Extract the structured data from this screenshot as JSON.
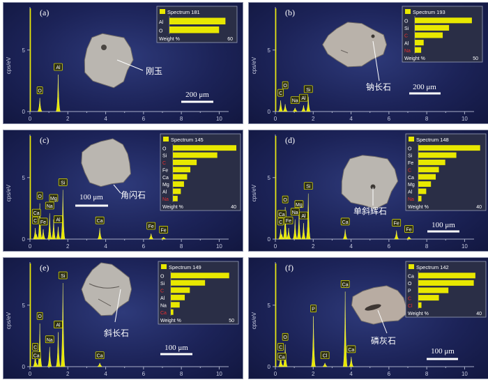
{
  "chart_data": [
    {
      "type": "bar",
      "panel_label": "(a)",
      "ylabel": "cps/eV",
      "x_ticks": [
        "0",
        "2",
        "4",
        "6",
        "8",
        "10"
      ],
      "y_ticks": [
        "0",
        "5"
      ],
      "xlim": [
        0,
        10.5
      ],
      "ylim": [
        0,
        8.5
      ],
      "peaks": [
        {
          "element": "O",
          "x": 0.52,
          "y": 1.1
        },
        {
          "element": "Al",
          "x": 1.49,
          "y": 3.0
        }
      ],
      "mineral": "刚玉",
      "scale_bar": "200 μm",
      "inset": {
        "title": "Spectrum 181",
        "footer_label": "Weight %",
        "axis_max": "60",
        "scale_max": 60,
        "items": [
          {
            "element": "Al",
            "value": 53,
            "color": "#e8e800"
          },
          {
            "element": "O",
            "value": 47,
            "color": "#e8e800"
          }
        ]
      }
    },
    {
      "type": "bar",
      "panel_label": "(b)",
      "ylabel": "cps/eV",
      "x_ticks": [
        "0",
        "2",
        "4",
        "6",
        "8",
        "10"
      ],
      "y_ticks": [
        "0",
        "5"
      ],
      "xlim": [
        0,
        10.5
      ],
      "ylim": [
        0,
        8.5
      ],
      "peaks": [
        {
          "element": "C",
          "x": 0.28,
          "y": 0.9
        },
        {
          "element": "O",
          "x": 0.52,
          "y": 0.6
        },
        {
          "element": "Na",
          "x": 1.04,
          "y": 0.3
        },
        {
          "element": "Al",
          "x": 1.49,
          "y": 0.5
        },
        {
          "element": "Si",
          "x": 1.74,
          "y": 1.2
        }
      ],
      "mineral": "钠长石",
      "scale_bar": "200 μm",
      "inset": {
        "title": "Spectrum 193",
        "footer_label": "Weight %",
        "axis_max": "50",
        "scale_max": 50,
        "items": [
          {
            "element": "O",
            "value": 45,
            "color": "#e8e800"
          },
          {
            "element": "Si",
            "value": 27,
            "color": "#e8e800"
          },
          {
            "element": "C",
            "value": 22,
            "color": "#e83030"
          },
          {
            "element": "Al",
            "value": 7,
            "color": "#e8e800"
          },
          {
            "element": "Na",
            "value": 5,
            "color": "#e83030"
          }
        ]
      }
    },
    {
      "type": "bar",
      "panel_label": "(c)",
      "ylabel": "cps/eV",
      "x_ticks": [
        "0",
        "2",
        "4",
        "6",
        "8",
        "10"
      ],
      "y_ticks": [
        "0",
        "5"
      ],
      "xlim": [
        0,
        10.5
      ],
      "ylim": [
        0,
        8.5
      ],
      "peaks": [
        {
          "element": "C",
          "x": 0.28,
          "y": 0.9
        },
        {
          "element": "Ca",
          "x": 0.34,
          "y": 0.4
        },
        {
          "element": "O",
          "x": 0.52,
          "y": 2.9
        },
        {
          "element": "Fe",
          "x": 0.7,
          "y": 0.8
        },
        {
          "element": "Na",
          "x": 1.04,
          "y": 2.1
        },
        {
          "element": "Mg",
          "x": 1.25,
          "y": 1.6
        },
        {
          "element": "Al",
          "x": 1.49,
          "y": 1.0
        },
        {
          "element": "Si",
          "x": 1.74,
          "y": 4.0
        },
        {
          "element": "Ca",
          "x": 3.69,
          "y": 0.9
        },
        {
          "element": "Fe",
          "x": 6.4,
          "y": 0.45
        },
        {
          "element": "Fe",
          "x": 7.06,
          "y": 0.15
        }
      ],
      "mineral": "角闪石",
      "scale_bar": "100 μm",
      "inset": {
        "title": "Spectrum 145",
        "footer_label": "Weight %",
        "axis_max": "40",
        "scale_max": 40,
        "items": [
          {
            "element": "O",
            "value": 40,
            "color": "#e8e800"
          },
          {
            "element": "Si",
            "value": 28,
            "color": "#e8e800"
          },
          {
            "element": "C",
            "value": 15,
            "color": "#e83030"
          },
          {
            "element": "Fe",
            "value": 11,
            "color": "#e8e800"
          },
          {
            "element": "Ca",
            "value": 9,
            "color": "#e8e800"
          },
          {
            "element": "Mg",
            "value": 7,
            "color": "#e8e800"
          },
          {
            "element": "Al",
            "value": 5,
            "color": "#e8e800"
          },
          {
            "element": "Na",
            "value": 3,
            "color": "#e83030"
          }
        ]
      }
    },
    {
      "type": "bar",
      "panel_label": "(d)",
      "ylabel": "cps/eV",
      "x_ticks": [
        "0",
        "2",
        "4",
        "6",
        "8",
        "10"
      ],
      "y_ticks": [
        "0",
        "5"
      ],
      "xlim": [
        0,
        10.5
      ],
      "ylim": [
        0,
        8.5
      ],
      "peaks": [
        {
          "element": "C",
          "x": 0.28,
          "y": 0.8
        },
        {
          "element": "Ca",
          "x": 0.34,
          "y": 0.4
        },
        {
          "element": "O",
          "x": 0.52,
          "y": 2.6
        },
        {
          "element": "Fe",
          "x": 0.7,
          "y": 0.9
        },
        {
          "element": "Na",
          "x": 1.04,
          "y": 1.6
        },
        {
          "element": "Mg",
          "x": 1.25,
          "y": 2.1
        },
        {
          "element": "Al",
          "x": 1.49,
          "y": 1.3
        },
        {
          "element": "Si",
          "x": 1.74,
          "y": 3.7
        },
        {
          "element": "Ca",
          "x": 3.69,
          "y": 0.8
        },
        {
          "element": "Fe",
          "x": 6.4,
          "y": 0.7
        },
        {
          "element": "Fe",
          "x": 7.06,
          "y": 0.2
        }
      ],
      "mineral": "单斜辉石",
      "scale_bar": "100 μm",
      "inset": {
        "title": "Spectrum 148",
        "footer_label": "Weight %",
        "axis_max": "40",
        "scale_max": 40,
        "items": [
          {
            "element": "O",
            "value": 39,
            "color": "#e8e800"
          },
          {
            "element": "Si",
            "value": 24,
            "color": "#e8e800"
          },
          {
            "element": "Fe",
            "value": 17,
            "color": "#e8e800"
          },
          {
            "element": "C",
            "value": 13,
            "color": "#e83030"
          },
          {
            "element": "Ca",
            "value": 11,
            "color": "#e8e800"
          },
          {
            "element": "Mg",
            "value": 8,
            "color": "#e8e800"
          },
          {
            "element": "Al",
            "value": 5,
            "color": "#e8e800"
          },
          {
            "element": "Na",
            "value": 2,
            "color": "#e83030"
          }
        ]
      }
    },
    {
      "type": "bar",
      "panel_label": "(e)",
      "ylabel": "cps/eV",
      "x_ticks": [
        "0",
        "2",
        "4",
        "6",
        "8",
        "10"
      ],
      "y_ticks": [
        "0",
        "5"
      ],
      "xlim": [
        0,
        10.5
      ],
      "ylim": [
        0,
        8.5
      ],
      "peaks": [
        {
          "element": "C",
          "x": 0.28,
          "y": 1.0
        },
        {
          "element": "Ca",
          "x": 0.34,
          "y": 0.3
        },
        {
          "element": "O",
          "x": 0.52,
          "y": 3.5
        },
        {
          "element": "Na",
          "x": 1.04,
          "y": 1.6
        },
        {
          "element": "Al",
          "x": 1.49,
          "y": 2.8
        },
        {
          "element": "Si",
          "x": 1.74,
          "y": 6.8
        },
        {
          "element": "Ca",
          "x": 3.69,
          "y": 0.3
        }
      ],
      "mineral": "斜长石",
      "scale_bar": "100 μm",
      "inset": {
        "title": "Spectrum 149",
        "footer_label": "Weight %",
        "axis_max": "50",
        "scale_max": 50,
        "items": [
          {
            "element": "O",
            "value": 46,
            "color": "#e8e800"
          },
          {
            "element": "Si",
            "value": 27,
            "color": "#e8e800"
          },
          {
            "element": "C",
            "value": 15,
            "color": "#e83030"
          },
          {
            "element": "Al",
            "value": 11,
            "color": "#e8e800"
          },
          {
            "element": "Na",
            "value": 7,
            "color": "#e8e800"
          },
          {
            "element": "Ca",
            "value": 2,
            "color": "#e83030"
          }
        ]
      }
    },
    {
      "type": "bar",
      "panel_label": "(f)",
      "ylabel": "cps/eV",
      "x_ticks": [
        "0",
        "2",
        "4",
        "6",
        "8",
        "10"
      ],
      "y_ticks": [
        "0",
        "5"
      ],
      "xlim": [
        0,
        10.5
      ],
      "ylim": [
        0,
        8.5
      ],
      "peaks": [
        {
          "element": "C",
          "x": 0.28,
          "y": 1.0
        },
        {
          "element": "Ca",
          "x": 0.34,
          "y": 0.2
        },
        {
          "element": "O",
          "x": 0.52,
          "y": 1.8
        },
        {
          "element": "P",
          "x": 2.01,
          "y": 4.1
        },
        {
          "element": "Cl",
          "x": 2.62,
          "y": 0.3
        },
        {
          "element": "Ca",
          "x": 3.69,
          "y": 6.1
        },
        {
          "element": "Ca",
          "x": 4.01,
          "y": 0.8
        }
      ],
      "mineral": "磷灰石",
      "scale_bar": "100 μm",
      "inset": {
        "title": "Spectrum 142",
        "footer_label": "Weight %",
        "axis_max": "40",
        "scale_max": 40,
        "items": [
          {
            "element": "Ca",
            "value": 36,
            "color": "#e8e800"
          },
          {
            "element": "O",
            "value": 35,
            "color": "#e8e800"
          },
          {
            "element": "P",
            "value": 19,
            "color": "#e8e800"
          },
          {
            "element": "C",
            "value": 13,
            "color": "#e83030"
          },
          {
            "element": "Cl",
            "value": 2,
            "color": "#e83030"
          }
        ]
      }
    }
  ]
}
